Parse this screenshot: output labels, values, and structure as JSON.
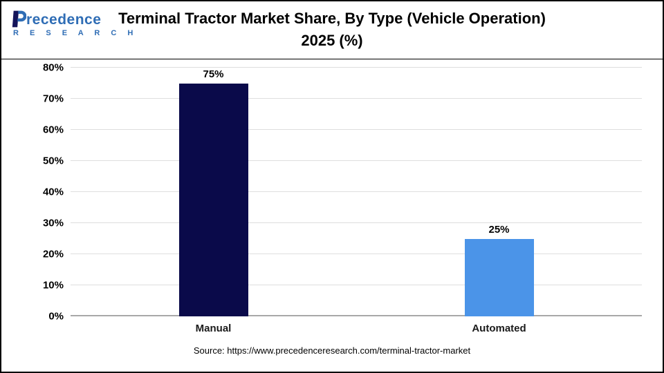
{
  "header": {
    "logo": {
      "name_full": "Precedence",
      "name_rest": "recedence",
      "research": "R E S E A R C H"
    },
    "title_line1": "Terminal Tractor Market Share, By Type (Vehicle Operation)",
    "title_line2": "2025 (%)"
  },
  "source": "Source: https://www.precedenceresearch.com/terminal-tractor-market",
  "chart_data": {
    "type": "bar",
    "title": "Terminal Tractor Market Share, By Type (Vehicle Operation) 2025 (%)",
    "categories": [
      "Manual",
      "Automated"
    ],
    "values": [
      75,
      25
    ],
    "value_labels": [
      "75%",
      "25%"
    ],
    "unit": "%",
    "xlabel": "",
    "ylabel": "",
    "ylim": [
      0,
      80
    ],
    "yticks": [
      0,
      10,
      20,
      30,
      40,
      50,
      60,
      70,
      80
    ],
    "bar_colors": [
      "#0a0a4a",
      "#4b94e8"
    ],
    "grid": "horizontal",
    "legend": "none"
  }
}
